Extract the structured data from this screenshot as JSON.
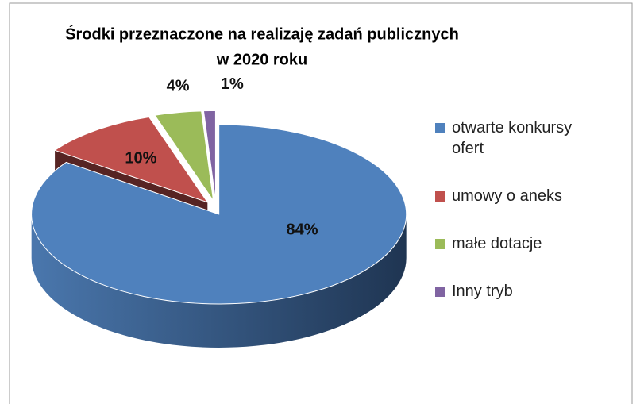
{
  "chart_data": {
    "type": "pie",
    "title": [
      "Środki przeznaczone na realizaję zadań publicznych",
      "w 2020 roku"
    ],
    "categories": [
      "otwarte konkursy ofert",
      "umowy o aneks",
      "małe dotacje",
      "Inny tryb"
    ],
    "values": [
      84,
      10,
      4,
      1
    ],
    "value_labels": [
      "84%",
      "10%",
      "4%",
      "1%"
    ],
    "colors": [
      "#4f81bd",
      "#c0504d",
      "#9bbb59",
      "#8064a2"
    ],
    "legend": "right"
  }
}
